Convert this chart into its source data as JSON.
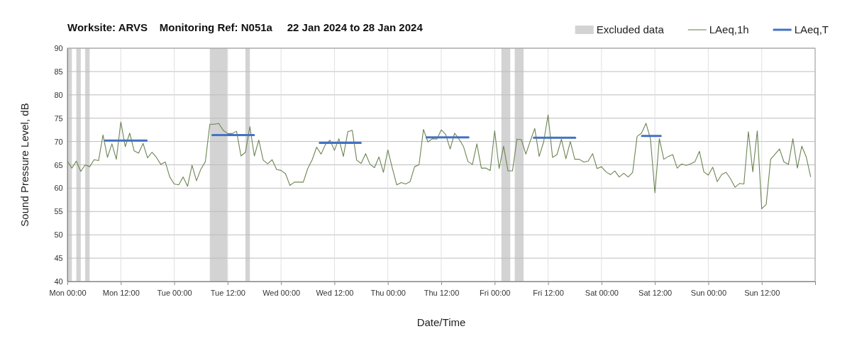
{
  "chart_data": {
    "type": "line",
    "title": "Worksite: ARVS    Monitoring Ref: N051a     22 Jan 2024 to 28 Jan 2024",
    "xlabel": "Date/Time",
    "ylabel": "Sound Pressure Level, dB",
    "x": [
      "2024-01-22T00:00",
      "2024-01-22T01:00",
      "2024-01-22T02:00",
      "2024-01-22T03:00",
      "2024-01-22T04:00",
      "2024-01-22T05:00",
      "2024-01-22T06:00",
      "2024-01-22T07:00",
      "2024-01-22T08:00",
      "2024-01-22T09:00",
      "2024-01-22T10:00",
      "2024-01-22T11:00",
      "2024-01-22T12:00",
      "2024-01-22T13:00",
      "2024-01-22T14:00",
      "2024-01-22T15:00",
      "2024-01-22T16:00",
      "2024-01-22T17:00",
      "2024-01-22T18:00",
      "2024-01-22T19:00",
      "2024-01-22T20:00",
      "2024-01-22T21:00",
      "2024-01-22T22:00",
      "2024-01-22T23:00",
      "2024-01-23T00:00",
      "2024-01-23T01:00",
      "2024-01-23T02:00",
      "2024-01-23T03:00",
      "2024-01-23T04:00",
      "2024-01-23T05:00",
      "2024-01-23T06:00",
      "2024-01-23T07:00",
      "2024-01-23T08:00",
      "2024-01-23T09:00",
      "2024-01-23T10:00",
      "2024-01-23T11:00",
      "2024-01-23T12:00",
      "2024-01-23T13:00",
      "2024-01-23T14:00",
      "2024-01-23T15:00",
      "2024-01-23T16:00",
      "2024-01-23T17:00",
      "2024-01-23T18:00",
      "2024-01-23T19:00",
      "2024-01-23T20:00",
      "2024-01-23T21:00",
      "2024-01-23T22:00",
      "2024-01-23T23:00",
      "2024-01-24T00:00",
      "2024-01-24T01:00",
      "2024-01-24T02:00",
      "2024-01-24T03:00",
      "2024-01-24T04:00",
      "2024-01-24T05:00",
      "2024-01-24T06:00",
      "2024-01-24T07:00",
      "2024-01-24T08:00",
      "2024-01-24T09:00",
      "2024-01-24T10:00",
      "2024-01-24T11:00",
      "2024-01-24T12:00",
      "2024-01-24T13:00",
      "2024-01-24T14:00",
      "2024-01-24T15:00",
      "2024-01-24T16:00",
      "2024-01-24T17:00",
      "2024-01-24T18:00",
      "2024-01-24T19:00",
      "2024-01-24T20:00",
      "2024-01-24T21:00",
      "2024-01-24T22:00",
      "2024-01-24T23:00",
      "2024-01-25T00:00",
      "2024-01-25T01:00",
      "2024-01-25T02:00",
      "2024-01-25T03:00",
      "2024-01-25T04:00",
      "2024-01-25T05:00",
      "2024-01-25T06:00",
      "2024-01-25T07:00",
      "2024-01-25T08:00",
      "2024-01-25T09:00",
      "2024-01-25T10:00",
      "2024-01-25T11:00",
      "2024-01-25T12:00",
      "2024-01-25T13:00",
      "2024-01-25T14:00",
      "2024-01-25T15:00",
      "2024-01-25T16:00",
      "2024-01-25T17:00",
      "2024-01-25T18:00",
      "2024-01-25T19:00",
      "2024-01-25T20:00",
      "2024-01-25T21:00",
      "2024-01-25T22:00",
      "2024-01-25T23:00",
      "2024-01-26T00:00",
      "2024-01-26T01:00",
      "2024-01-26T02:00",
      "2024-01-26T03:00",
      "2024-01-26T04:00",
      "2024-01-26T05:00",
      "2024-01-26T06:00",
      "2024-01-26T07:00",
      "2024-01-26T08:00",
      "2024-01-26T09:00",
      "2024-01-26T10:00",
      "2024-01-26T11:00",
      "2024-01-26T12:00",
      "2024-01-26T13:00",
      "2024-01-26T14:00",
      "2024-01-26T15:00",
      "2024-01-26T16:00",
      "2024-01-26T17:00",
      "2024-01-26T18:00",
      "2024-01-26T19:00",
      "2024-01-26T20:00",
      "2024-01-26T21:00",
      "2024-01-26T22:00",
      "2024-01-26T23:00",
      "2024-01-27T00:00",
      "2024-01-27T01:00",
      "2024-01-27T02:00",
      "2024-01-27T03:00",
      "2024-01-27T04:00",
      "2024-01-27T05:00",
      "2024-01-27T06:00",
      "2024-01-27T07:00",
      "2024-01-27T08:00",
      "2024-01-27T09:00",
      "2024-01-27T10:00",
      "2024-01-27T11:00",
      "2024-01-27T12:00",
      "2024-01-27T13:00",
      "2024-01-27T14:00",
      "2024-01-27T15:00",
      "2024-01-27T16:00",
      "2024-01-27T17:00",
      "2024-01-27T18:00",
      "2024-01-27T19:00",
      "2024-01-27T20:00",
      "2024-01-27T21:00",
      "2024-01-27T22:00",
      "2024-01-27T23:00",
      "2024-01-28T00:00",
      "2024-01-28T01:00",
      "2024-01-28T02:00",
      "2024-01-28T03:00",
      "2024-01-28T04:00",
      "2024-01-28T05:00",
      "2024-01-28T06:00",
      "2024-01-28T07:00",
      "2024-01-28T08:00",
      "2024-01-28T09:00",
      "2024-01-28T10:00",
      "2024-01-28T11:00",
      "2024-01-28T12:00",
      "2024-01-28T13:00",
      "2024-01-28T14:00",
      "2024-01-28T15:00",
      "2024-01-28T16:00",
      "2024-01-28T17:00",
      "2024-01-28T18:00",
      "2024-01-28T19:00",
      "2024-01-28T20:00",
      "2024-01-28T21:00",
      "2024-01-28T22:00",
      "2024-01-28T23:00"
    ],
    "series": [
      {
        "name": "LAeq,1h",
        "color": "#6b8553",
        "values": [
          65.8,
          64.3,
          65.8,
          63.6,
          65.0,
          64.6,
          66.1,
          65.9,
          71.4,
          66.6,
          69.5,
          66.2,
          74.2,
          68.9,
          71.8,
          68.0,
          67.5,
          69.6,
          66.5,
          67.7,
          66.6,
          65.1,
          65.6,
          62.4,
          60.9,
          60.7,
          62.4,
          60.4,
          64.9,
          61.6,
          64.1,
          65.7,
          73.7,
          73.7,
          73.9,
          72.4,
          71.7,
          71.7,
          72.2,
          66.9,
          67.7,
          73.2,
          66.9,
          70.3,
          66.0,
          65.2,
          66.1,
          64.0,
          63.8,
          63.1,
          60.6,
          61.3,
          61.3,
          61.3,
          64.2,
          66.1,
          68.8,
          67.3,
          69.4,
          70.3,
          68.1,
          70.6,
          66.8,
          72.1,
          72.4,
          66.0,
          65.3,
          67.4,
          65.1,
          64.4,
          66.7,
          63.4,
          68.2,
          64.3,
          60.7,
          61.2,
          60.9,
          61.4,
          64.6,
          65.0,
          72.6,
          69.9,
          70.6,
          70.5,
          72.5,
          71.5,
          68.4,
          71.8,
          70.5,
          68.9,
          65.7,
          65.1,
          69.5,
          64.3,
          64.3,
          63.8,
          72.3,
          64.2,
          69.0,
          63.7,
          63.7,
          70.5,
          70.4,
          67.3,
          70.1,
          72.8,
          66.8,
          69.9,
          75.7,
          66.6,
          67.2,
          70.5,
          66.3,
          70.0,
          66.2,
          66.2,
          65.6,
          65.8,
          67.4,
          64.2,
          64.6,
          63.5,
          62.9,
          63.7,
          62.4,
          63.2,
          62.4,
          63.4,
          71.1,
          71.8,
          73.9,
          70.6,
          59.0,
          70.6,
          66.2,
          66.8,
          67.2,
          64.3,
          65.2,
          64.9,
          65.2,
          65.7,
          67.9,
          63.5,
          62.8,
          64.5,
          61.4,
          62.9,
          63.4,
          62.0,
          60.2,
          61.0,
          60.9,
          72.1,
          63.5,
          72.3,
          55.6,
          56.5,
          66.2,
          67.3,
          68.4,
          65.6,
          65.1,
          70.6,
          64.3,
          69.0,
          66.7,
          62.4
        ]
      },
      {
        "name": "LAeq,T",
        "color": "#4472c4",
        "x": [
          "2024-01-22T08:30",
          "2024-01-22T17:48",
          "2024-01-23T01:00",
          "2024-01-23T08:36",
          "2024-01-23T17:54",
          "2024-01-24T01:00",
          "2024-01-24T08:42",
          "2024-01-24T17:54",
          "2024-01-25T01:00",
          "2024-01-25T08:42",
          "2024-01-25T18:06",
          "2024-01-26T01:00",
          "2024-01-26T08:48",
          "2024-01-26T18:06",
          "2024-01-27T01:00",
          "2024-01-27T09:06",
          "2024-01-27T13:18"
        ],
        "values": [
          70.2,
          70.2,
          null,
          71.4,
          71.4,
          null,
          69.7,
          69.7,
          null,
          70.9,
          70.9,
          null,
          70.8,
          70.8,
          null,
          71.2,
          71.2
        ]
      }
    ],
    "bands": [
      {
        "axis": "x",
        "from": "2024-01-22T00:00",
        "to": "2024-01-22T01:00",
        "label": "Excluded data",
        "color": "#d3d3d3"
      },
      {
        "axis": "x",
        "from": "2024-01-22T02:00",
        "to": "2024-01-22T03:00",
        "color": "#d3d3d3"
      },
      {
        "axis": "x",
        "from": "2024-01-22T04:00",
        "to": "2024-01-22T05:00",
        "color": "#d3d3d3"
      },
      {
        "axis": "x",
        "from": "2024-01-23T08:00",
        "to": "2024-01-23T12:00",
        "color": "#d3d3d3"
      },
      {
        "axis": "x",
        "from": "2024-01-23T16:00",
        "to": "2024-01-23T17:00",
        "color": "#d3d3d3"
      },
      {
        "axis": "x",
        "from": "2024-01-26T01:30",
        "to": "2024-01-26T03:30",
        "color": "#d3d3d3"
      },
      {
        "axis": "x",
        "from": "2024-01-26T04:30",
        "to": "2024-01-26T06:30",
        "color": "#d3d3d3"
      }
    ],
    "xlim": [
      "2024-01-22T00:00",
      "2024-01-29T00:00"
    ],
    "xticks": [
      {
        "value": "2024-01-22T00:00",
        "label": "Mon 00:00"
      },
      {
        "value": "2024-01-22T12:00",
        "label": "Mon 12:00"
      },
      {
        "value": "2024-01-23T00:00",
        "label": "Tue 00:00"
      },
      {
        "value": "2024-01-23T12:00",
        "label": "Tue 12:00"
      },
      {
        "value": "2024-01-24T00:00",
        "label": "Wed 00:00"
      },
      {
        "value": "2024-01-24T12:00",
        "label": "Wed 12:00"
      },
      {
        "value": "2024-01-25T00:00",
        "label": "Thu 00:00"
      },
      {
        "value": "2024-01-25T12:00",
        "label": "Thu 12:00"
      },
      {
        "value": "2024-01-26T00:00",
        "label": "Fri 00:00"
      },
      {
        "value": "2024-01-26T12:00",
        "label": "Fri 12:00"
      },
      {
        "value": "2024-01-27T00:00",
        "label": "Sat 00:00"
      },
      {
        "value": "2024-01-27T12:00",
        "label": "Sat 12:00"
      },
      {
        "value": "2024-01-28T00:00",
        "label": "Sun 00:00"
      },
      {
        "value": "2024-01-28T12:00",
        "label": "Sun 12:00"
      },
      {
        "value": "2024-01-29T00:00",
        "label": null
      }
    ],
    "ylim": [
      40,
      90
    ],
    "yticks": [
      40,
      45,
      50,
      55,
      60,
      65,
      70,
      75,
      80,
      85,
      90
    ],
    "grid": true,
    "legend": "top right",
    "marker": "none",
    "line_style": "solid"
  }
}
